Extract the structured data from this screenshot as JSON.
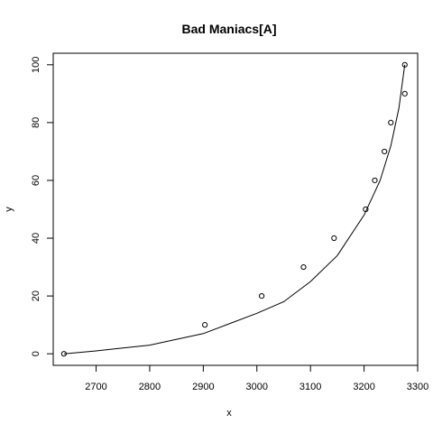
{
  "chart_data": {
    "type": "scatter",
    "title": "Bad Maniacs[A]",
    "xlabel": "x",
    "ylabel": "y",
    "xlim": [
      2620,
      3300
    ],
    "ylim": [
      -4,
      104
    ],
    "x_ticks": [
      "2700",
      "2800",
      "2900",
      "3000",
      "3100",
      "3200",
      "3300"
    ],
    "y_ticks": [
      "0",
      "20",
      "40",
      "60",
      "80",
      "100"
    ],
    "x_tick_values": [
      2700,
      2800,
      2900,
      3000,
      3100,
      3200,
      3300
    ],
    "y_tick_values": [
      0,
      20,
      40,
      60,
      80,
      100
    ],
    "grid": false,
    "legend": "none",
    "points": [
      {
        "x": 2640,
        "y": 0
      },
      {
        "x": 2903,
        "y": 10
      },
      {
        "x": 3009,
        "y": 20
      },
      {
        "x": 3087,
        "y": 30
      },
      {
        "x": 3144,
        "y": 40
      },
      {
        "x": 3203,
        "y": 50
      },
      {
        "x": 3220,
        "y": 60
      },
      {
        "x": 3238,
        "y": 70
      },
      {
        "x": 3250,
        "y": 80
      },
      {
        "x": 3276,
        "y": 90
      },
      {
        "x": 3276,
        "y": 100
      }
    ],
    "fit_curve": [
      {
        "x": 2640,
        "y": 0
      },
      {
        "x": 2700,
        "y": 1
      },
      {
        "x": 2800,
        "y": 3
      },
      {
        "x": 2900,
        "y": 7
      },
      {
        "x": 3000,
        "y": 14
      },
      {
        "x": 3050,
        "y": 18
      },
      {
        "x": 3100,
        "y": 25
      },
      {
        "x": 3150,
        "y": 34
      },
      {
        "x": 3200,
        "y": 48
      },
      {
        "x": 3230,
        "y": 60
      },
      {
        "x": 3250,
        "y": 72
      },
      {
        "x": 3265,
        "y": 85
      },
      {
        "x": 3276,
        "y": 100
      }
    ]
  }
}
